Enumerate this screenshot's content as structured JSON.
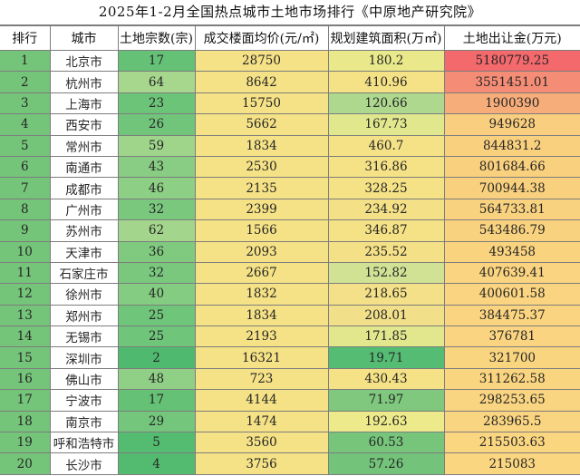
{
  "title": "2025年1-2月全国热点城市土地市场排行《中原地产研究院》",
  "table": {
    "columns": [
      "排行",
      "城市",
      "土地宗数(宗)",
      "成交楼面均价(元/㎡)",
      "规划建筑面积(万㎡)",
      "土地出让金(万元)"
    ],
    "column_bg": {
      "rank": "#74C479",
      "city": "#FFFFFF",
      "price": "#F5E286"
    },
    "rows": [
      {
        "rank": "1",
        "city": "北京市",
        "parcels": "17",
        "price": "28750",
        "area": "180.2",
        "fee": "5180779.25",
        "parcels_bg": "#64C176",
        "area_bg": "#E9E98B",
        "fee_bg": "#F4696C"
      },
      {
        "rank": "2",
        "city": "杭州市",
        "parcels": "64",
        "price": "8642",
        "area": "410.96",
        "fee": "3551451.01",
        "parcels_bg": "#A6D78D",
        "area_bg": "#F5E286",
        "fee_bg": "#F58D76"
      },
      {
        "rank": "3",
        "city": "上海市",
        "parcels": "23",
        "price": "15750",
        "area": "120.66",
        "fee": "1900390",
        "parcels_bg": "#6CC479",
        "area_bg": "#AFD88F",
        "fee_bg": "#F7AD7A"
      },
      {
        "rank": "4",
        "city": "西安市",
        "parcels": "26",
        "price": "5662",
        "area": "167.73",
        "fee": "949628",
        "parcels_bg": "#71C57B",
        "area_bg": "#E0E78D",
        "fee_bg": "#F9CE7E"
      },
      {
        "rank": "5",
        "city": "常州市",
        "parcels": "59",
        "price": "1834",
        "area": "460.7",
        "fee": "844831.2",
        "parcels_bg": "#9FD58B",
        "area_bg": "#F5E286",
        "fee_bg": "#F9D07E"
      },
      {
        "rank": "6",
        "city": "南通市",
        "parcels": "43",
        "price": "2530",
        "area": "316.86",
        "fee": "801684.66",
        "parcels_bg": "#88CD83",
        "area_bg": "#F5E286",
        "fee_bg": "#F9D07E"
      },
      {
        "rank": "7",
        "city": "成都市",
        "parcels": "46",
        "price": "2135",
        "area": "328.25",
        "fee": "700944.38",
        "parcels_bg": "#8DCF84",
        "area_bg": "#F5E286",
        "fee_bg": "#F9D17E"
      },
      {
        "rank": "8",
        "city": "广州市",
        "parcels": "32",
        "price": "2399",
        "area": "234.92",
        "fee": "564733.81",
        "parcels_bg": "#79C87E",
        "area_bg": "#F4E187",
        "fee_bg": "#F9D27F"
      },
      {
        "rank": "9",
        "city": "苏州市",
        "parcels": "62",
        "price": "1566",
        "area": "346.87",
        "fee": "543486.79",
        "parcels_bg": "#A3D68C",
        "area_bg": "#F5E286",
        "fee_bg": "#F9D27F"
      },
      {
        "rank": "10",
        "city": "天津市",
        "parcels": "36",
        "price": "2093",
        "area": "235.52",
        "fee": "493458",
        "parcels_bg": "#7FCA7F",
        "area_bg": "#F4E187",
        "fee_bg": "#FAD37F"
      },
      {
        "rank": "11",
        "city": "石家庄市",
        "parcels": "32",
        "price": "2667",
        "area": "152.82",
        "fee": "407639.41",
        "parcels_bg": "#79C87E",
        "area_bg": "#D2E295",
        "fee_bg": "#FAD480"
      },
      {
        "rank": "12",
        "city": "徐州市",
        "parcels": "40",
        "price": "1832",
        "area": "218.65",
        "fee": "400601.58",
        "parcels_bg": "#84CC81",
        "area_bg": "#F3E088",
        "fee_bg": "#FAD480"
      },
      {
        "rank": "13",
        "city": "郑州市",
        "parcels": "25",
        "price": "1834",
        "area": "208.01",
        "fee": "384475.37",
        "parcels_bg": "#6FC57A",
        "area_bg": "#F1DF89",
        "fee_bg": "#FAD480"
      },
      {
        "rank": "14",
        "city": "无锡市",
        "parcels": "25",
        "price": "2193",
        "area": "171.85",
        "fee": "376781",
        "parcels_bg": "#6FC57A",
        "area_bg": "#E2E78D",
        "fee_bg": "#FAD480"
      },
      {
        "rank": "15",
        "city": "深圳市",
        "parcels": "2",
        "price": "16321",
        "area": "19.71",
        "fee": "321700",
        "parcels_bg": "#4FBA6F",
        "area_bg": "#55BC73",
        "fee_bg": "#FAD580"
      },
      {
        "rank": "16",
        "city": "佛山市",
        "parcels": "48",
        "price": "723",
        "area": "430.43",
        "fee": "311262.58",
        "parcels_bg": "#90D086",
        "area_bg": "#F5E286",
        "fee_bg": "#FAD580"
      },
      {
        "rank": "17",
        "city": "宁波市",
        "parcels": "17",
        "price": "4144",
        "area": "71.97",
        "fee": "298253.65",
        "parcels_bg": "#64C176",
        "area_bg": "#7FC87E",
        "fee_bg": "#FAD581"
      },
      {
        "rank": "18",
        "city": "南京市",
        "parcels": "29",
        "price": "1474",
        "area": "192.63",
        "fee": "283965.5",
        "parcels_bg": "#74C67C",
        "area_bg": "#EDEA8C",
        "fee_bg": "#FAD581"
      },
      {
        "rank": "19",
        "city": "呼和浩特市",
        "parcels": "5",
        "price": "3560",
        "area": "60.53",
        "fee": "215503.63",
        "parcels_bg": "#53BC70",
        "area_bg": "#76C57B",
        "fee_bg": "#FBD681"
      },
      {
        "rank": "20",
        "city": "长沙市",
        "parcels": "4",
        "price": "3756",
        "area": "57.26",
        "fee": "215083",
        "parcels_bg": "#52BB70",
        "area_bg": "#73C47A",
        "fee_bg": "#FBD681"
      }
    ]
  },
  "chart_data": {
    "type": "table",
    "title": "2025年1-2月全国热点城市土地市场排行《中原地产研究院》",
    "columns": [
      "排行",
      "城市",
      "土地宗数(宗)",
      "成交楼面均价(元/㎡)",
      "规划建筑面积(万㎡)",
      "土地出让金(万元)"
    ],
    "rows": [
      [
        1,
        "北京市",
        17,
        28750,
        180.2,
        5180779.25
      ],
      [
        2,
        "杭州市",
        64,
        8642,
        410.96,
        3551451.01
      ],
      [
        3,
        "上海市",
        23,
        15750,
        120.66,
        1900390
      ],
      [
        4,
        "西安市",
        26,
        5662,
        167.73,
        949628
      ],
      [
        5,
        "常州市",
        59,
        1834,
        460.7,
        844831.2
      ],
      [
        6,
        "南通市",
        43,
        2530,
        316.86,
        801684.66
      ],
      [
        7,
        "成都市",
        46,
        2135,
        328.25,
        700944.38
      ],
      [
        8,
        "广州市",
        32,
        2399,
        234.92,
        564733.81
      ],
      [
        9,
        "苏州市",
        62,
        1566,
        346.87,
        543486.79
      ],
      [
        10,
        "天津市",
        36,
        2093,
        235.52,
        493458
      ],
      [
        11,
        "石家庄市",
        32,
        2667,
        152.82,
        407639.41
      ],
      [
        12,
        "徐州市",
        40,
        1832,
        218.65,
        400601.58
      ],
      [
        13,
        "郑州市",
        25,
        1834,
        208.01,
        384475.37
      ],
      [
        14,
        "无锡市",
        25,
        2193,
        171.85,
        376781
      ],
      [
        15,
        "深圳市",
        2,
        16321,
        19.71,
        321700
      ],
      [
        16,
        "佛山市",
        48,
        723,
        430.43,
        311262.58
      ],
      [
        17,
        "宁波市",
        17,
        4144,
        71.97,
        298253.65
      ],
      [
        18,
        "南京市",
        29,
        1474,
        192.63,
        283965.5
      ],
      [
        19,
        "呼和浩特市",
        5,
        3560,
        60.53,
        215503.63
      ],
      [
        20,
        "长沙市",
        4,
        3756,
        57.26,
        215083
      ]
    ],
    "conditional_formatting": {
      "土地宗数(宗)": "green color scale (low=dark green, high=light green)",
      "成交楼面均价(元/㎡)": "uniform yellow",
      "规划建筑面积(万㎡)": "green-to-yellow scale (low=green, high=yellow)",
      "土地出让金(万元)": "yellow-orange-to-red scale (high=red)"
    }
  }
}
